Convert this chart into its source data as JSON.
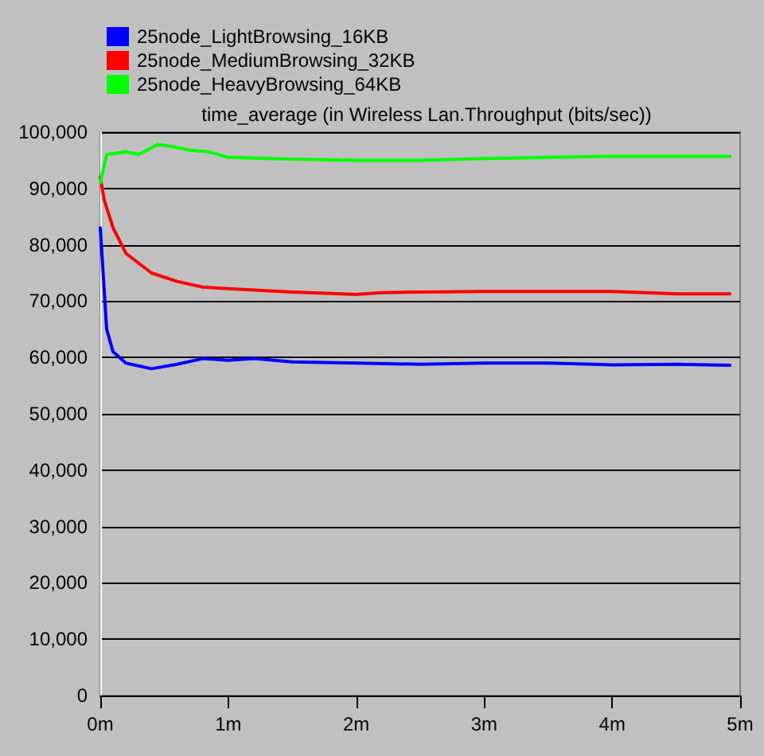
{
  "chart_data": {
    "type": "line",
    "title": "time_average (in Wireless Lan.Throughput (bits/sec))",
    "series": [
      {
        "name": "25node_LightBrowsing_16KB",
        "color": "#0000ff",
        "x": [
          0,
          0.05,
          0.1,
          0.2,
          0.4,
          0.6,
          0.8,
          1.0,
          1.2,
          1.5,
          2.0,
          2.5,
          3.0,
          3.5,
          4.0,
          4.5,
          4.92
        ],
        "values": [
          83000,
          65000,
          61000,
          59000,
          58000,
          58800,
          59800,
          59500,
          59800,
          59200,
          59000,
          58800,
          59000,
          59000,
          58700,
          58800,
          58600
        ]
      },
      {
        "name": "25node_MediumBrowsing_32KB",
        "color": "#ff0000",
        "x": [
          0,
          0.03,
          0.1,
          0.2,
          0.4,
          0.6,
          0.8,
          1.0,
          1.5,
          2.0,
          2.2,
          2.5,
          3.0,
          4.0,
          4.5,
          4.92
        ],
        "values": [
          92000,
          88000,
          83000,
          78500,
          75000,
          73500,
          72500,
          72200,
          71600,
          71200,
          71500,
          71600,
          71700,
          71700,
          71300,
          71300
        ]
      },
      {
        "name": "25node_HeavyBrowsing_64KB",
        "color": "#00ff00",
        "x": [
          0,
          0.05,
          0.2,
          0.3,
          0.45,
          0.55,
          0.7,
          0.85,
          1.0,
          1.5,
          2.0,
          2.5,
          3.0,
          3.5,
          4.0,
          4.92
        ],
        "values": [
          91000,
          96000,
          96500,
          96000,
          97800,
          97500,
          96800,
          96500,
          95500,
          95200,
          95000,
          95000,
          95300,
          95500,
          95700,
          95700
        ]
      }
    ],
    "xlim": [
      0,
      5
    ],
    "xticks": [
      {
        "value": 0,
        "label": "0m"
      },
      {
        "value": 1,
        "label": "1m"
      },
      {
        "value": 2,
        "label": "2m"
      },
      {
        "value": 3,
        "label": "3m"
      },
      {
        "value": 4,
        "label": "4m"
      },
      {
        "value": 5,
        "label": "5m"
      }
    ],
    "ylim": [
      0,
      100000
    ],
    "yticks": [
      {
        "value": 0,
        "label": "0"
      },
      {
        "value": 10000,
        "label": "10,000"
      },
      {
        "value": 20000,
        "label": "20,000"
      },
      {
        "value": 30000,
        "label": "30,000"
      },
      {
        "value": 40000,
        "label": "40,000"
      },
      {
        "value": 50000,
        "label": "50,000"
      },
      {
        "value": 60000,
        "label": "60,000"
      },
      {
        "value": 70000,
        "label": "70,000"
      },
      {
        "value": 80000,
        "label": "80,000"
      },
      {
        "value": 90000,
        "label": "90,000"
      },
      {
        "value": 100000,
        "label": "100,000"
      }
    ],
    "grid": "y",
    "legend": "top left",
    "marker": "none",
    "line_style": "solid"
  }
}
